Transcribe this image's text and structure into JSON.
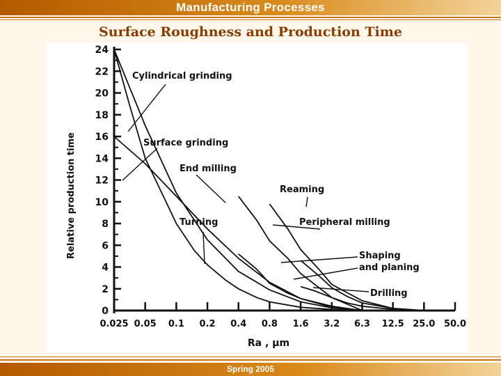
{
  "header": {
    "title": "Manufacturing Processes"
  },
  "footer": {
    "text": "Spring 2005"
  },
  "colors": {
    "accent": "#d98a1a",
    "subtitle": "#8b3a00"
  },
  "chart_data": {
    "type": "line",
    "title": "Surface Roughness and Production Time",
    "xlabel": "Ra , μm",
    "ylabel": "Relative production time",
    "x_scale": "log",
    "x": [
      "0.025",
      "0.05",
      "0.1",
      "0.2",
      "0.4",
      "0.8",
      "1.6",
      "3.2",
      "6.3",
      "12.5",
      "25.0",
      "50.0"
    ],
    "y_ticks": [
      0,
      2,
      4,
      6,
      8,
      10,
      12,
      14,
      16,
      18,
      20,
      22,
      24
    ],
    "ylim": [
      0,
      24
    ],
    "grid": false,
    "legend": "none",
    "series": [
      {
        "name": "Cylindrical grinding",
        "x": [
          0.025,
          0.035,
          0.05,
          0.075,
          0.1,
          0.15,
          0.2,
          0.3,
          0.4,
          0.6,
          0.8,
          1.6,
          3.2,
          6.3
        ],
        "y": [
          24,
          19,
          14,
          10.5,
          8,
          5.5,
          4.2,
          2.8,
          2,
          1.2,
          0.8,
          0.3,
          0.1,
          0
        ]
      },
      {
        "name": "Surface grinding",
        "x": [
          0.025,
          0.05,
          0.1,
          0.2,
          0.4,
          0.8,
          1.6,
          3.2,
          6.3
        ],
        "y": [
          24,
          17,
          10.8,
          6.5,
          3.6,
          1.9,
          0.8,
          0.25,
          0
        ]
      },
      {
        "name": "End milling",
        "x": [
          0.025,
          0.05,
          0.1,
          0.2,
          0.4,
          0.8,
          1.6,
          3.2,
          6.3
        ],
        "y": [
          16,
          13.5,
          10.5,
          7.5,
          4.8,
          2.6,
          1.1,
          0.3,
          0
        ]
      },
      {
        "name": "Turning",
        "x": [
          0.4,
          0.6,
          0.8,
          1.2,
          1.6,
          3.2,
          6.3
        ],
        "y": [
          5.2,
          3.8,
          2.5,
          1.6,
          1.1,
          0.4,
          0
        ]
      },
      {
        "name": "Reaming",
        "x": [
          0.4,
          0.6,
          0.8,
          1.2,
          1.6,
          3.2,
          6.3
        ],
        "y": [
          10.5,
          8.3,
          6.4,
          4.8,
          3.4,
          1.2,
          0
        ]
      },
      {
        "name": "Peripheral milling",
        "x": [
          0.8,
          1.2,
          1.6,
          2.4,
          3.2,
          6.3,
          12.5,
          25.0,
          50.0
        ],
        "y": [
          9.8,
          7.5,
          5.6,
          3.8,
          2.4,
          0.9,
          0.2,
          0,
          0
        ]
      },
      {
        "name": "Shaping and planing",
        "x": [
          1.6,
          2.4,
          3.2,
          4.5,
          6.3,
          12.5,
          25.0,
          50.0
        ],
        "y": [
          4.6,
          3.2,
          2.1,
          1.3,
          0.7,
          0.2,
          0,
          0
        ]
      },
      {
        "name": "Drilling",
        "x": [
          1.6,
          2.2,
          3.2,
          4.5,
          6.3,
          12.5,
          25.0
        ],
        "y": [
          2.2,
          1.8,
          1.2,
          0.7,
          0.4,
          0.1,
          0
        ]
      }
    ],
    "annotations": [
      {
        "text": "Cylindrical grinding"
      },
      {
        "text": "Surface grinding"
      },
      {
        "text": "End milling"
      },
      {
        "text": "Reaming"
      },
      {
        "text": "Peripheral milling"
      },
      {
        "text": "Turning"
      },
      {
        "text": "Shaping"
      },
      {
        "text": "and planing"
      },
      {
        "text": "Drilling"
      }
    ]
  }
}
